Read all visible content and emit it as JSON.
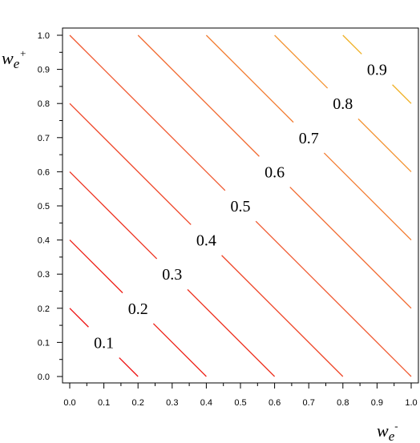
{
  "chart_data": {
    "type": "line",
    "title": "",
    "xlabel": {
      "base": "w",
      "sub": "e",
      "sup": "-"
    },
    "ylabel": {
      "base": "w",
      "sub": "e",
      "sup": "+"
    },
    "xlim": [
      0.0,
      1.0
    ],
    "ylim": [
      0.0,
      1.0
    ],
    "x_ticks": [
      "0.0",
      "0.1",
      "0.2",
      "0.3",
      "0.4",
      "0.5",
      "0.6",
      "0.7",
      "0.8",
      "0.9",
      "1.0"
    ],
    "y_ticks": [
      "0.0",
      "0.1",
      "0.2",
      "0.3",
      "0.4",
      "0.5",
      "0.6",
      "0.7",
      "0.8",
      "0.9",
      "1.0"
    ],
    "grid": false,
    "legend": "none",
    "contours": [
      {
        "level": "0.1",
        "color": "#ee1111",
        "label_at": [
          0.1,
          0.1
        ]
      },
      {
        "level": "0.2",
        "color": "#ee2218",
        "label_at": [
          0.2,
          0.2
        ]
      },
      {
        "level": "0.3",
        "color": "#ee3320",
        "label_at": [
          0.3,
          0.3
        ]
      },
      {
        "level": "0.4",
        "color": "#ef4426",
        "label_at": [
          0.4,
          0.4
        ]
      },
      {
        "level": "0.5",
        "color": "#f0562c",
        "label_at": [
          0.5,
          0.5
        ]
      },
      {
        "level": "0.6",
        "color": "#f26a30",
        "label_at": [
          0.6,
          0.6
        ]
      },
      {
        "level": "0.7",
        "color": "#f37e34",
        "label_at": [
          0.7,
          0.7
        ]
      },
      {
        "level": "0.8",
        "color": "#f39536",
        "label_at": [
          0.8,
          0.8
        ]
      },
      {
        "level": "0.9",
        "color": "#f0b024",
        "label_at": [
          0.9,
          0.9
        ]
      }
    ]
  }
}
